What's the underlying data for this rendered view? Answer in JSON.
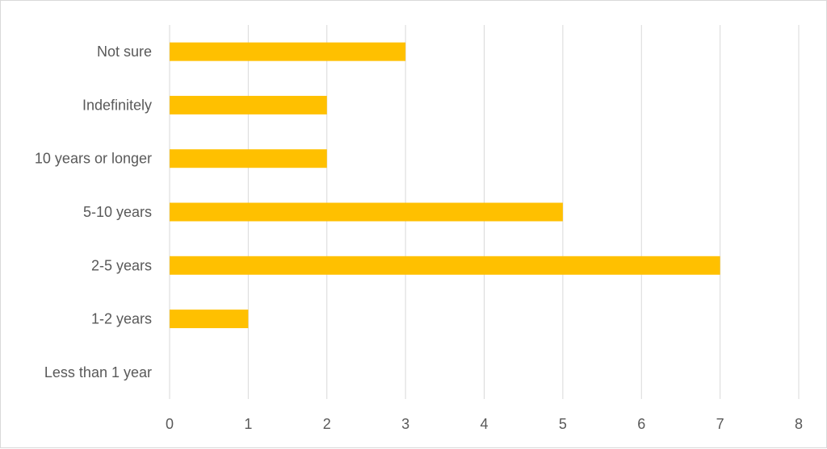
{
  "chart_data": {
    "type": "bar",
    "orientation": "horizontal",
    "categories": [
      "Not sure",
      "Indefinitely",
      "10 years or longer",
      "5-10 years",
      "2-5 years",
      "1-2 years",
      "Less than 1 year"
    ],
    "values": [
      3,
      2,
      2,
      5,
      7,
      1,
      0
    ],
    "xlim": [
      0,
      8
    ],
    "x_ticks": [
      "0",
      "1",
      "2",
      "3",
      "4",
      "5",
      "6",
      "7",
      "8"
    ],
    "grid": "vertical",
    "title": "",
    "xlabel": "",
    "ylabel": "",
    "bar_color": "#FFC000",
    "grid_color": "#D9D9D9"
  }
}
